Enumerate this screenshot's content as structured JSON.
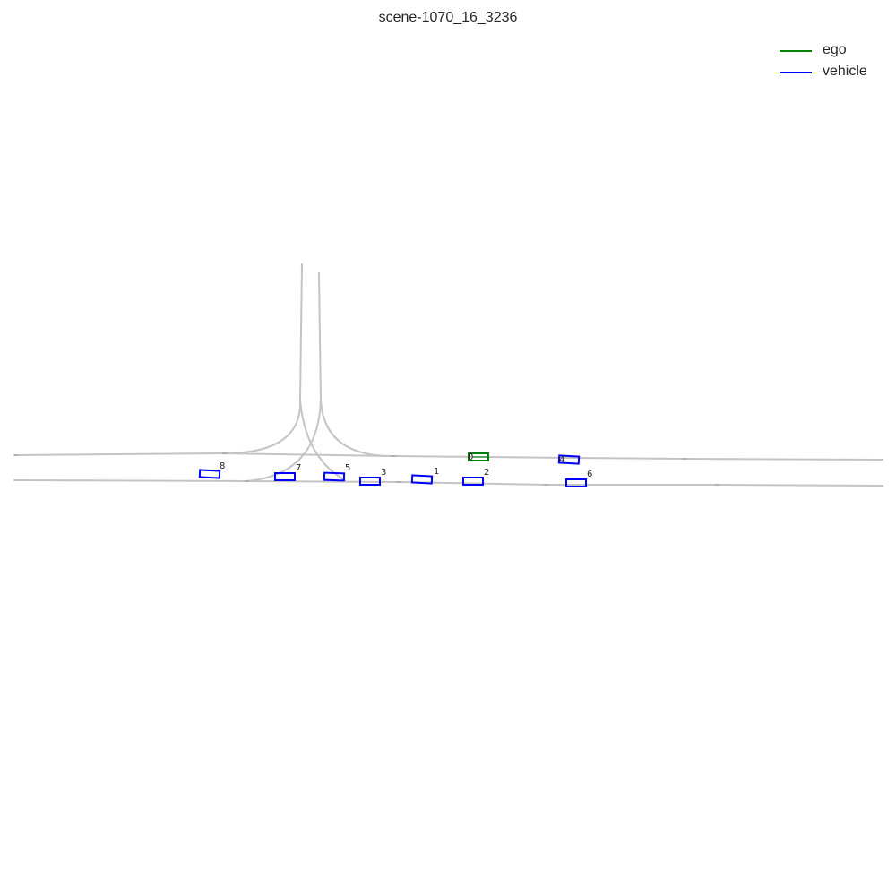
{
  "title": "scene-1070_16_3236",
  "legend": [
    {
      "label": "ego",
      "color": "#008000"
    },
    {
      "label": "vehicle",
      "color": "#0000ff"
    }
  ],
  "agents": [
    {
      "id": "0",
      "type": "ego",
      "color": "#008000"
    },
    {
      "id": "1",
      "type": "vehicle",
      "color": "#0000ff"
    },
    {
      "id": "2",
      "type": "vehicle",
      "color": "#0000ff"
    },
    {
      "id": "3",
      "type": "vehicle",
      "color": "#0000ff"
    },
    {
      "id": "4",
      "type": "vehicle",
      "color": "#0000ff"
    },
    {
      "id": "5",
      "type": "vehicle",
      "color": "#0000ff"
    },
    {
      "id": "6",
      "type": "vehicle",
      "color": "#0000ff"
    },
    {
      "id": "7",
      "type": "vehicle",
      "color": "#0000ff"
    },
    {
      "id": "8",
      "type": "vehicle",
      "color": "#0000ff"
    }
  ],
  "lane_color": "#c4c4c4"
}
